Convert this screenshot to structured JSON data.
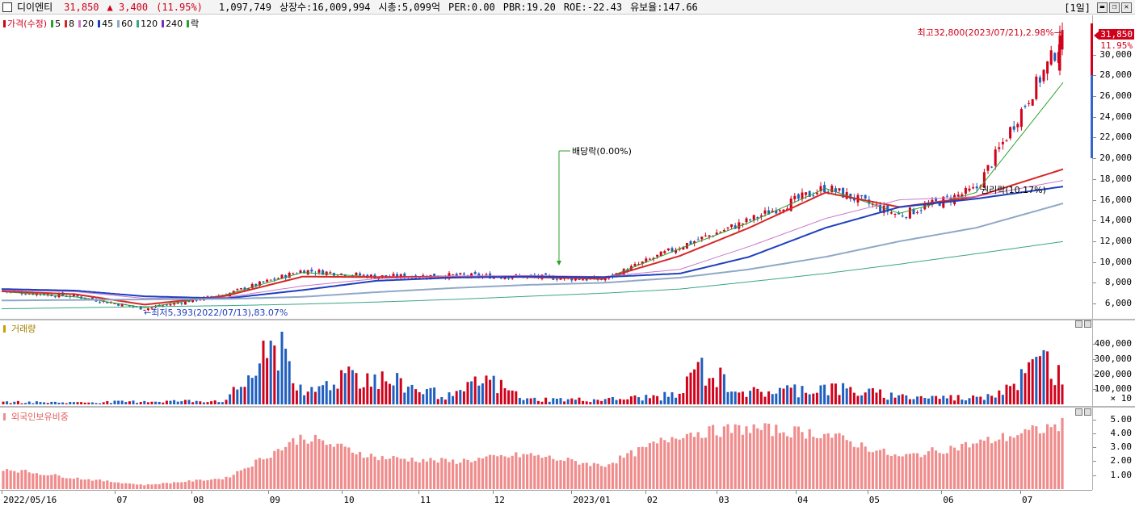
{
  "header": {
    "stock_name": "디이엔티",
    "price": "31,850",
    "change": "▲ 3,400",
    "change_pct": "(11.95%)",
    "volume": "1,097,749",
    "shares": "상장수:16,009,994",
    "market_cap": "시총:5,099억",
    "per": "PER:0.00",
    "pbr": "PBR:19.20",
    "roe": "ROE:-22.43",
    "float_ratio": "유보율:147.66",
    "period": "[1일]"
  },
  "price_panel": {
    "legend_label": "가격(수정)",
    "ma_labels": [
      "5",
      "8",
      "20",
      "45",
      "60",
      "120",
      "240"
    ],
    "ma_colors": [
      "#2ca02c",
      "#d62728",
      "#c978c9",
      "#1f3fbf",
      "#8fa8c8",
      "#3aa587",
      "#7b2fb5"
    ],
    "extra_label": "락",
    "high_annotation": "최고32,800(2023/07/21),2.98%→",
    "low_annotation": "←최저5,393(2022/07/13),83.07%",
    "dividend_annotation": "배당락(0.00%)",
    "rights_annotation": "권리락(10.17%)",
    "current_price_tag": "31,850",
    "current_pct_tag": "11.95%",
    "y_ticks": [
      "30,000",
      "28,000",
      "26,000",
      "24,000",
      "22,000",
      "20,000",
      "18,000",
      "16,000",
      "14,000",
      "12,000",
      "10,000",
      "8,000",
      "6,000"
    ]
  },
  "volume_panel": {
    "legend_label": "거래량",
    "y_ticks": [
      "400,000",
      "300,000",
      "200,000",
      "100,000"
    ],
    "unit": "× 10"
  },
  "foreign_panel": {
    "legend_label": "외국인보유비중",
    "y_ticks": [
      "5.00",
      "4.00",
      "3.00",
      "2.00",
      "1.00"
    ]
  },
  "x_axis": {
    "labels": [
      "2022/05/16",
      "07",
      "08",
      "09",
      "10",
      "11",
      "12",
      "2023/01",
      "02",
      "03",
      "04",
      "05",
      "06",
      "07"
    ]
  },
  "colors": {
    "up": "#d0021b",
    "down": "#1f5fbf",
    "foreign_bar": "#f08c8c"
  },
  "chart_data": [
    {
      "type": "candlestick",
      "title": "가격(수정)",
      "x": [
        "2022/05/16",
        "2022/06/15",
        "2022/07/13",
        "2022/08/15",
        "2022/09/15",
        "2022/10/15",
        "2022/11/15",
        "2022/12/15",
        "2023/01/15",
        "2023/02/15",
        "2023/03/15",
        "2023/04/15",
        "2023/05/15",
        "2023/06/15",
        "2023/07/21"
      ],
      "series": [
        {
          "name": "가격(수정)",
          "values": [
            7200,
            6700,
            5500,
            6900,
            9200,
            8600,
            8700,
            8600,
            8300,
            11500,
            14000,
            17200,
            14500,
            17000,
            31850
          ]
        },
        {
          "name": "5",
          "values": [
            7150,
            6650,
            5600,
            6850,
            9000,
            8550,
            8650,
            8550,
            8350,
            11300,
            13800,
            17100,
            14700,
            16700,
            27500
          ]
        },
        {
          "name": "20",
          "values": [
            7200,
            6900,
            5900,
            6750,
            8600,
            8550,
            8600,
            8550,
            8400,
            10600,
            13300,
            16700,
            15300,
            16300,
            19000
          ]
        },
        {
          "name": "45",
          "values": [
            7300,
            7150,
            6500,
            6600,
            7700,
            8400,
            8650,
            8700,
            8600,
            9300,
            11500,
            14200,
            16000,
            16300,
            17900
          ]
        },
        {
          "name": "60",
          "values": [
            7400,
            7250,
            6700,
            6500,
            7300,
            8200,
            8500,
            8600,
            8550,
            8900,
            10500,
            13300,
            15300,
            16100,
            17300
          ]
        },
        {
          "name": "120",
          "values": [
            6300,
            6350,
            6400,
            6450,
            6650,
            7100,
            7500,
            7800,
            8000,
            8500,
            9300,
            10500,
            12000,
            13300,
            15700
          ]
        },
        {
          "name": "240",
          "values": [
            5500,
            5600,
            5700,
            5800,
            5950,
            6150,
            6400,
            6700,
            7000,
            7400,
            8100,
            8900,
            9800,
            10800,
            12000
          ]
        }
      ],
      "ylim": [
        5000,
        33000
      ],
      "high": {
        "value": 32800,
        "date": "2023/07/21"
      },
      "low": {
        "value": 5393,
        "date": "2022/07/13"
      }
    },
    {
      "type": "bar",
      "title": "거래량",
      "unit_multiplier": 10,
      "x": [
        "2022/05/16",
        "2022/06/15",
        "2022/07/13",
        "2022/08/15",
        "2022/09/07",
        "2022/09/15",
        "2022/10/04",
        "2022/11/15",
        "2022/11/28",
        "2022/12/15",
        "2023/01/15",
        "2023/02/15",
        "2023/02/22",
        "2023/03/15",
        "2023/04/15",
        "2023/05/15",
        "2023/06/15",
        "2023/06/28",
        "2023/07/14",
        "2023/07/18",
        "2023/07/21"
      ],
      "values": [
        18000,
        15000,
        22000,
        30000,
        480000,
        60000,
        250000,
        55000,
        190000,
        40000,
        35000,
        70000,
        280000,
        90000,
        130000,
        60000,
        50000,
        130000,
        350000,
        260000,
        110000
      ],
      "ylim": [
        0,
        480000
      ]
    },
    {
      "type": "bar",
      "title": "외국인보유비중",
      "x": [
        "2022/05/16",
        "2022/06/15",
        "2022/07/13",
        "2022/08/15",
        "2022/09/15",
        "2022/10/15",
        "2022/11/15",
        "2022/12/15",
        "2023/01/15",
        "2023/02/15",
        "2023/03/15",
        "2023/04/15",
        "2023/05/15",
        "2023/06/15",
        "2023/07/21"
      ],
      "values": [
        1.5,
        0.8,
        0.3,
        0.8,
        3.8,
        2.3,
        2.0,
        2.5,
        1.7,
        4.0,
        4.4,
        4.0,
        2.3,
        3.3,
        4.7
      ],
      "ylim": [
        0,
        5.5
      ]
    }
  ]
}
